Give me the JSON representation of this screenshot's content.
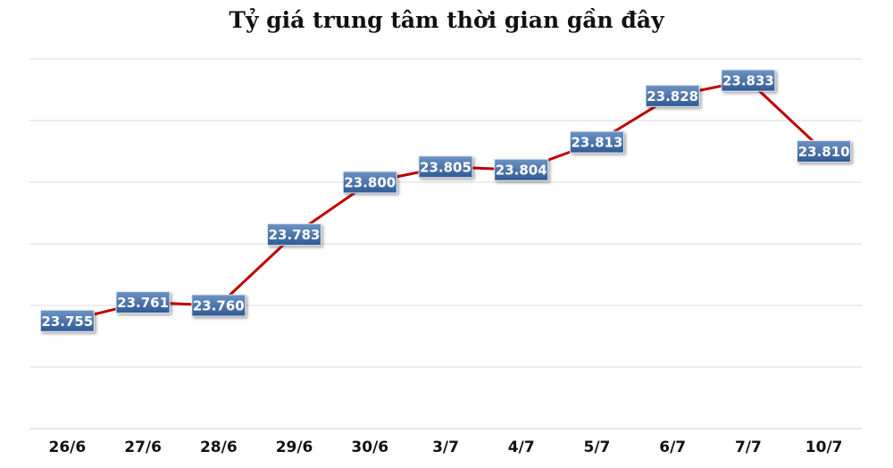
{
  "chart_data": {
    "type": "line",
    "title": "Tỷ giá trung tâm thời gian gần đây",
    "categories": [
      "26/6",
      "27/6",
      "28/6",
      "29/6",
      "30/6",
      "3/7",
      "4/7",
      "5/7",
      "6/7",
      "7/7",
      "10/7"
    ],
    "values": [
      23.755,
      23.761,
      23.76,
      23.783,
      23.8,
      23.805,
      23.804,
      23.813,
      23.828,
      23.833,
      23.81
    ],
    "data_labels": [
      "23.755",
      "23.761",
      "23.760",
      "23.783",
      "23.800",
      "23.805",
      "23.804",
      "23.813",
      "23.828",
      "23.833",
      "23.810"
    ],
    "xlabel": "",
    "ylabel": "",
    "ylim": [
      23.72,
      23.84
    ],
    "grid": true,
    "y_tick_labels_shown": false,
    "legend": "none",
    "colors": {
      "line": "#c00000",
      "label_bg": "#3f6aa1",
      "label_bg_light": "#6d93c4",
      "grid": "#d9d9d9"
    }
  }
}
